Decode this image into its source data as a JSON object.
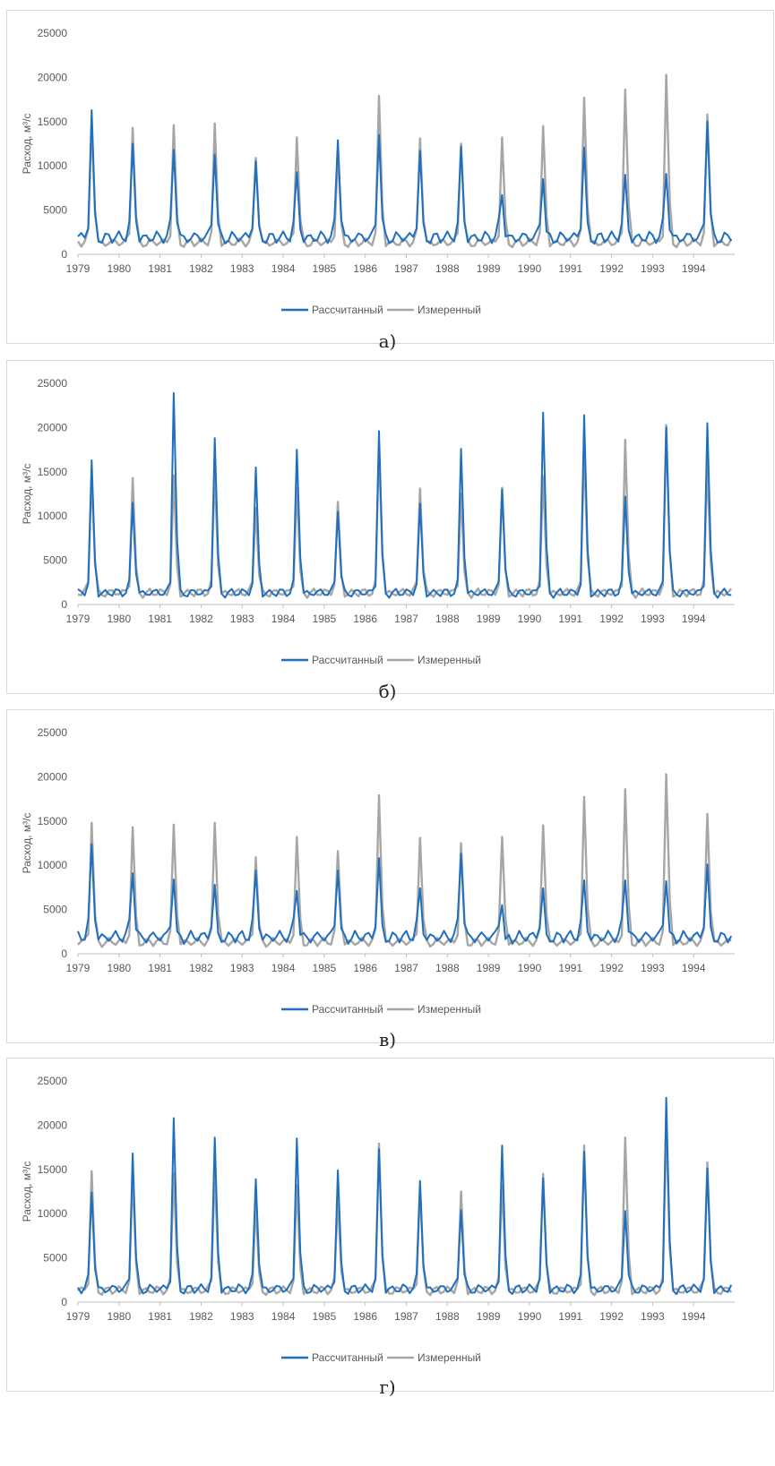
{
  "colors": {
    "calculated": "#1f6fbf",
    "measured": "#a6a6a6",
    "axis": "#bfbfbf",
    "text": "#595959"
  },
  "chart_data": [
    {
      "type": "line",
      "caption": "а)",
      "xlabel": "",
      "ylabel": "Расход, м³/с",
      "ylim": [
        0,
        25000
      ],
      "yticks": [
        "0",
        "5000",
        "10000",
        "15000",
        "20000",
        "25000"
      ],
      "xticks": [
        "1979",
        "1980",
        "1981",
        "1982",
        "1983",
        "1984",
        "1985",
        "1986",
        "1987",
        "1988",
        "1989",
        "1990",
        "1991",
        "1992",
        "1993",
        "1994"
      ],
      "grid": false,
      "legend": "bottom",
      "series": [
        {
          "name": "Рассчитанный",
          "peaks": [
            16300,
            12500,
            11800,
            11300,
            10500,
            9300,
            12900,
            13500,
            11700,
            12200,
            6700,
            8500,
            12100,
            9000,
            9100,
            15000
          ],
          "base": 2300
        },
        {
          "name": "Измеренный",
          "peaks": [
            14800,
            14300,
            14600,
            14800,
            10900,
            13200,
            11600,
            17900,
            13100,
            12500,
            13200,
            14500,
            17700,
            18600,
            20300,
            15800
          ],
          "base": 1600
        }
      ]
    },
    {
      "type": "line",
      "caption": "б)",
      "xlabel": "",
      "ylabel": "Расход, м³/с",
      "ylim": [
        0,
        25000
      ],
      "yticks": [
        "0",
        "5000",
        "10000",
        "15000",
        "20000",
        "25000"
      ],
      "xticks": [
        "1979",
        "1980",
        "1981",
        "1982",
        "1983",
        "1984",
        "1985",
        "1986",
        "1987",
        "1988",
        "1989",
        "1990",
        "1991",
        "1992",
        "1993",
        "1994"
      ],
      "grid": false,
      "legend": "bottom",
      "series": [
        {
          "name": "Рассчитанный",
          "peaks": [
            16300,
            11500,
            23900,
            18800,
            15500,
            17500,
            10500,
            19600,
            11400,
            17600,
            13000,
            21700,
            21400,
            12200,
            20000,
            20500
          ],
          "base": 1600
        },
        {
          "name": "Измеренный",
          "peaks": [
            14800,
            14300,
            14600,
            14800,
            10900,
            13200,
            11600,
            17900,
            13100,
            12500,
            13200,
            14500,
            17700,
            18600,
            20300,
            15800
          ],
          "base": 1600
        }
      ]
    },
    {
      "type": "line",
      "caption": "в)",
      "xlabel": "",
      "ylabel": "Расход, м³/с",
      "ylim": [
        0,
        25000
      ],
      "yticks": [
        "0",
        "5000",
        "10000",
        "15000",
        "20000",
        "25000"
      ],
      "xticks": [
        "1979",
        "1980",
        "1981",
        "1982",
        "1983",
        "1984",
        "1985",
        "1986",
        "1987",
        "1988",
        "1989",
        "1990",
        "1991",
        "1992",
        "1993",
        "1994"
      ],
      "grid": false,
      "legend": "bottom",
      "series": [
        {
          "name": "Рассчитанный",
          "peaks": [
            12400,
            9100,
            8400,
            7800,
            9400,
            7100,
            9400,
            10800,
            7400,
            11300,
            5500,
            7400,
            8300,
            8300,
            8200,
            10100
          ],
          "base": 2300
        },
        {
          "name": "Измеренный",
          "peaks": [
            14800,
            14300,
            14600,
            14800,
            10900,
            13200,
            11600,
            17900,
            13100,
            12500,
            13200,
            14500,
            17700,
            18600,
            20300,
            15800
          ],
          "base": 1600
        }
      ]
    },
    {
      "type": "line",
      "caption": "г)",
      "xlabel": "",
      "ylabel": "Расход, м³/с",
      "ylim": [
        0,
        25000
      ],
      "yticks": [
        "0",
        "5000",
        "10000",
        "15000",
        "20000",
        "25000"
      ],
      "xticks": [
        "1979",
        "1980",
        "1981",
        "1982",
        "1983",
        "1984",
        "1985",
        "1986",
        "1987",
        "1988",
        "1989",
        "1990",
        "1991",
        "1992",
        "1993",
        "1994"
      ],
      "grid": false,
      "legend": "bottom",
      "series": [
        {
          "name": "Рассчитанный",
          "peaks": [
            12400,
            16800,
            20800,
            18600,
            13900,
            18500,
            14900,
            17300,
            13700,
            10400,
            17700,
            14000,
            17000,
            10300,
            23100,
            15100
          ],
          "base": 1800
        },
        {
          "name": "Измеренный",
          "peaks": [
            14800,
            14300,
            14600,
            14800,
            10900,
            13200,
            11600,
            17900,
            13100,
            12500,
            13200,
            14500,
            17700,
            18600,
            20300,
            15800
          ],
          "base": 1600
        }
      ]
    }
  ]
}
